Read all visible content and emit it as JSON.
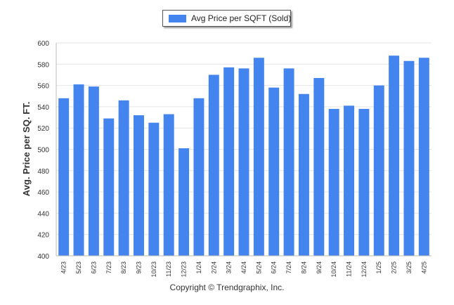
{
  "chart_data": {
    "type": "bar",
    "categories": [
      "4/23",
      "5/23",
      "6/23",
      "7/23",
      "8/23",
      "9/23",
      "10/23",
      "11/23",
      "12/23",
      "1/24",
      "2/24",
      "3/24",
      "4/24",
      "5/24",
      "6/24",
      "7/24",
      "8/24",
      "9/24",
      "10/24",
      "11/24",
      "12/24",
      "1/25",
      "2/25",
      "3/25",
      "4/25"
    ],
    "series": [
      {
        "name": "Avg Price per SQFT (Sold)",
        "values": [
          548,
          561,
          559,
          529,
          546,
          532,
          525,
          533,
          501,
          548,
          570,
          577,
          576,
          586,
          558,
          576,
          552,
          567,
          538,
          541,
          538,
          560,
          588,
          583,
          586
        ]
      }
    ],
    "ylabel": "Avg. Price per SQ. FT.",
    "xlabel": "",
    "ylim": [
      400,
      600
    ],
    "yticks": [
      400,
      420,
      440,
      460,
      480,
      500,
      520,
      540,
      560,
      580,
      600
    ],
    "grid": true,
    "legend_position": "top-center",
    "bar_color": "#4484ee"
  },
  "footer": {
    "copyright": "Copyright © Trendgraphix, Inc."
  }
}
